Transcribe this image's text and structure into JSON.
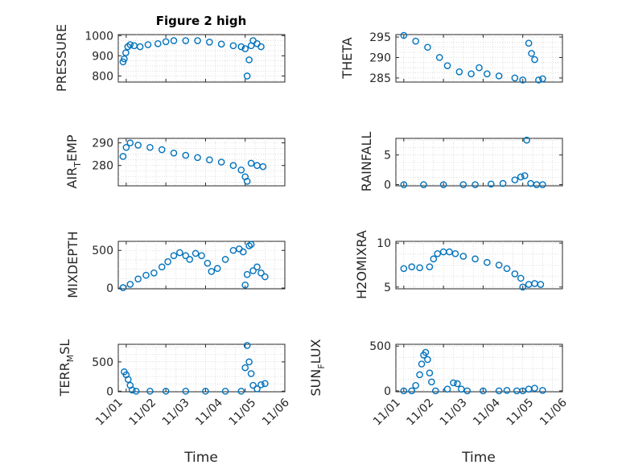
{
  "chart_data": [
    {
      "type": "scatter",
      "title": "Figure 2 high",
      "ylabel": "PRESSURE",
      "ylim": [
        770,
        1005
      ],
      "yticks": [
        800,
        900,
        1000
      ],
      "points": [
        [
          1.92,
          870
        ],
        [
          1.95,
          885
        ],
        [
          1.99,
          915
        ],
        [
          2.04,
          945
        ],
        [
          2.1,
          955
        ],
        [
          2.2,
          950
        ],
        [
          2.35,
          945
        ],
        [
          2.55,
          955
        ],
        [
          2.8,
          960
        ],
        [
          3.0,
          970
        ],
        [
          3.2,
          975
        ],
        [
          3.5,
          975
        ],
        [
          3.8,
          975
        ],
        [
          4.1,
          968
        ],
        [
          4.4,
          958
        ],
        [
          4.7,
          950
        ],
        [
          4.9,
          945
        ],
        [
          5.0,
          935
        ],
        [
          5.05,
          800
        ],
        [
          5.1,
          880
        ],
        [
          5.15,
          950
        ],
        [
          5.2,
          975
        ],
        [
          5.3,
          960
        ],
        [
          5.4,
          945
        ]
      ]
    },
    {
      "type": "scatter",
      "title": "",
      "ylabel": "THETA",
      "ylim": [
        284,
        295.6
      ],
      "yticks": [
        285,
        290,
        295
      ],
      "points": [
        [
          2.0,
          295.4
        ],
        [
          2.3,
          294
        ],
        [
          2.6,
          292.5
        ],
        [
          2.9,
          290
        ],
        [
          3.1,
          288
        ],
        [
          3.4,
          286.5
        ],
        [
          3.7,
          286
        ],
        [
          3.9,
          287.5
        ],
        [
          4.1,
          286
        ],
        [
          4.4,
          285.5
        ],
        [
          4.8,
          285
        ],
        [
          5.0,
          284.5
        ],
        [
          5.15,
          293.5
        ],
        [
          5.22,
          291
        ],
        [
          5.3,
          289.5
        ],
        [
          5.4,
          284.5
        ],
        [
          5.5,
          284.8
        ]
      ]
    },
    {
      "type": "scatter",
      "title": "",
      "ylabel_main": "AIR",
      "ylabel_sub": "T",
      "ylabel_rest": "EMP",
      "ylim": [
        271,
        292
      ],
      "yticks": [
        280,
        290
      ],
      "points": [
        [
          1.92,
          284
        ],
        [
          2.0,
          288
        ],
        [
          2.1,
          290
        ],
        [
          2.3,
          289
        ],
        [
          2.6,
          288
        ],
        [
          2.9,
          287
        ],
        [
          3.2,
          285.5
        ],
        [
          3.5,
          284.5
        ],
        [
          3.8,
          283.5
        ],
        [
          4.1,
          282.5
        ],
        [
          4.4,
          281.5
        ],
        [
          4.7,
          280
        ],
        [
          4.9,
          278
        ],
        [
          5.0,
          275
        ],
        [
          5.05,
          273
        ],
        [
          5.15,
          281
        ],
        [
          5.3,
          280
        ],
        [
          5.45,
          279.5
        ]
      ]
    },
    {
      "type": "scatter",
      "title": "",
      "ylabel": "RAINFALL",
      "ylim": [
        -0.2,
        7.8
      ],
      "yticks": [
        0,
        5
      ],
      "points": [
        [
          2.0,
          0
        ],
        [
          2.5,
          0
        ],
        [
          3.0,
          0
        ],
        [
          3.5,
          0
        ],
        [
          3.8,
          0
        ],
        [
          4.2,
          0.1
        ],
        [
          4.5,
          0.2
        ],
        [
          4.8,
          0.8
        ],
        [
          4.95,
          1.3
        ],
        [
          5.05,
          1.5
        ],
        [
          5.1,
          7.5
        ],
        [
          5.2,
          0.2
        ],
        [
          5.35,
          0
        ],
        [
          5.5,
          0
        ]
      ]
    },
    {
      "type": "scatter",
      "title": "",
      "ylabel": "MIXDEPTH",
      "ylim": [
        -10,
        620
      ],
      "yticks": [
        0,
        500
      ],
      "points": [
        [
          1.92,
          5
        ],
        [
          2.1,
          50
        ],
        [
          2.3,
          120
        ],
        [
          2.5,
          170
        ],
        [
          2.7,
          200
        ],
        [
          2.9,
          280
        ],
        [
          3.05,
          350
        ],
        [
          3.2,
          430
        ],
        [
          3.35,
          470
        ],
        [
          3.5,
          430
        ],
        [
          3.6,
          380
        ],
        [
          3.75,
          460
        ],
        [
          3.9,
          430
        ],
        [
          4.05,
          330
        ],
        [
          4.15,
          220
        ],
        [
          4.3,
          260
        ],
        [
          4.5,
          380
        ],
        [
          4.7,
          500
        ],
        [
          4.85,
          520
        ],
        [
          4.95,
          480
        ],
        [
          5.0,
          40
        ],
        [
          5.05,
          180
        ],
        [
          5.1,
          560
        ],
        [
          5.15,
          580
        ],
        [
          5.2,
          230
        ],
        [
          5.3,
          280
        ],
        [
          5.4,
          200
        ],
        [
          5.5,
          150
        ]
      ]
    },
    {
      "type": "scatter",
      "title": "",
      "ylabel": "H2OMIXRA",
      "ylim": [
        4.8,
        10.2
      ],
      "yticks": [
        5,
        10
      ],
      "points": [
        [
          2.0,
          7.1
        ],
        [
          2.2,
          7.3
        ],
        [
          2.4,
          7.2
        ],
        [
          2.65,
          7.3
        ],
        [
          2.75,
          8.2
        ],
        [
          2.85,
          8.8
        ],
        [
          3.0,
          9.0
        ],
        [
          3.15,
          9.0
        ],
        [
          3.3,
          8.8
        ],
        [
          3.5,
          8.5
        ],
        [
          3.8,
          8.2
        ],
        [
          4.1,
          7.8
        ],
        [
          4.4,
          7.5
        ],
        [
          4.6,
          7.1
        ],
        [
          4.8,
          6.5
        ],
        [
          4.95,
          6.0
        ],
        [
          5.0,
          5.0
        ],
        [
          5.15,
          5.3
        ],
        [
          5.3,
          5.4
        ],
        [
          5.45,
          5.3
        ]
      ]
    },
    {
      "type": "scatter",
      "title": "",
      "ylabel_main": "TERR",
      "ylabel_sub": "M",
      "ylabel_rest": "SL",
      "ylim": [
        -10,
        800
      ],
      "yticks": [
        0,
        500
      ],
      "points": [
        [
          1.95,
          330
        ],
        [
          2.0,
          280
        ],
        [
          2.05,
          200
        ],
        [
          2.1,
          100
        ],
        [
          2.15,
          20
        ],
        [
          2.25,
          0
        ],
        [
          2.6,
          0
        ],
        [
          3.0,
          0
        ],
        [
          3.5,
          0
        ],
        [
          4.0,
          0
        ],
        [
          4.5,
          0
        ],
        [
          4.9,
          0
        ],
        [
          5.0,
          400
        ],
        [
          5.05,
          780
        ],
        [
          5.1,
          500
        ],
        [
          5.15,
          300
        ],
        [
          5.2,
          100
        ],
        [
          5.3,
          40
        ],
        [
          5.4,
          110
        ],
        [
          5.5,
          130
        ]
      ]
    },
    {
      "type": "scatter",
      "title": "",
      "ylabel_main": "SUN",
      "ylabel_sub": "F",
      "ylabel_rest": "LUX",
      "ylim": [
        -10,
        520
      ],
      "yticks": [
        0,
        500
      ],
      "points": [
        [
          2.0,
          0
        ],
        [
          2.2,
          0
        ],
        [
          2.3,
          60
        ],
        [
          2.4,
          180
        ],
        [
          2.45,
          300
        ],
        [
          2.5,
          400
        ],
        [
          2.55,
          430
        ],
        [
          2.6,
          350
        ],
        [
          2.65,
          200
        ],
        [
          2.7,
          100
        ],
        [
          2.8,
          0
        ],
        [
          3.1,
          20
        ],
        [
          3.25,
          90
        ],
        [
          3.35,
          80
        ],
        [
          3.45,
          20
        ],
        [
          3.6,
          0
        ],
        [
          4.0,
          0
        ],
        [
          4.4,
          0
        ],
        [
          4.6,
          5
        ],
        [
          4.85,
          0
        ],
        [
          5.0,
          0
        ],
        [
          5.15,
          20
        ],
        [
          5.3,
          30
        ],
        [
          5.5,
          5
        ]
      ]
    }
  ],
  "xaxis": {
    "label": "Time",
    "ticks": [
      "11/01",
      "11/02",
      "11/03",
      "11/04",
      "11/05",
      "11/06"
    ],
    "tick_values": [
      1,
      2,
      3,
      4,
      5,
      6
    ],
    "xlim": [
      1.8,
      6.0
    ]
  },
  "colors": {
    "marker": "#0072BD",
    "axis": "#262626",
    "grid": "#c8c8c8"
  }
}
